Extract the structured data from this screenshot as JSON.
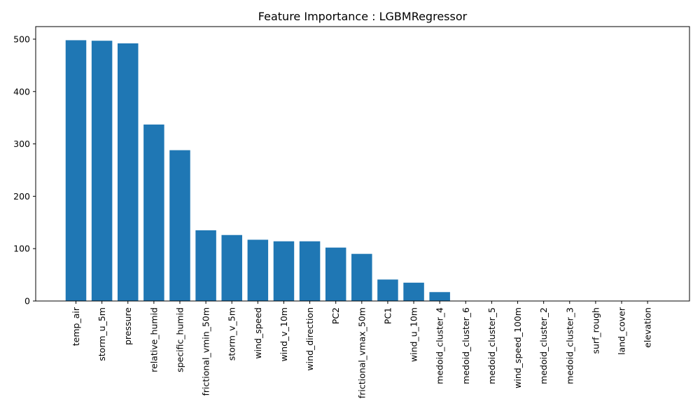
{
  "chart_data": {
    "type": "bar",
    "title": "Feature Importance : LGBMRegressor",
    "xlabel": "",
    "ylabel": "",
    "categories": [
      "temp_air",
      "storm_u_5m",
      "pressure",
      "relative_humid",
      "specific_humid",
      "frictional_vmin_50m",
      "storm_v_5m",
      "wind_speed",
      "wind_v_10m",
      "wind_direction",
      "PC2",
      "frictional_vmax_50m",
      "PC1",
      "wind_u_10m",
      "medoid_cluster_4",
      "medoid_cluster_6",
      "medoid_cluster_5",
      "wind_speed_100m",
      "medoid_cluster_2",
      "medoid_cluster_3",
      "surf_rough",
      "land_cover",
      "elevation"
    ],
    "values": [
      498,
      497,
      492,
      337,
      288,
      135,
      126,
      117,
      114,
      114,
      102,
      90,
      41,
      35,
      17,
      0,
      0,
      0,
      0,
      0,
      0,
      0,
      0
    ],
    "ylim": [
      0,
      524
    ],
    "yticks": [
      "0",
      "100",
      "200",
      "300",
      "400",
      "500"
    ],
    "bar_color": "#1f77b4",
    "grid": false,
    "legend": "none"
  }
}
